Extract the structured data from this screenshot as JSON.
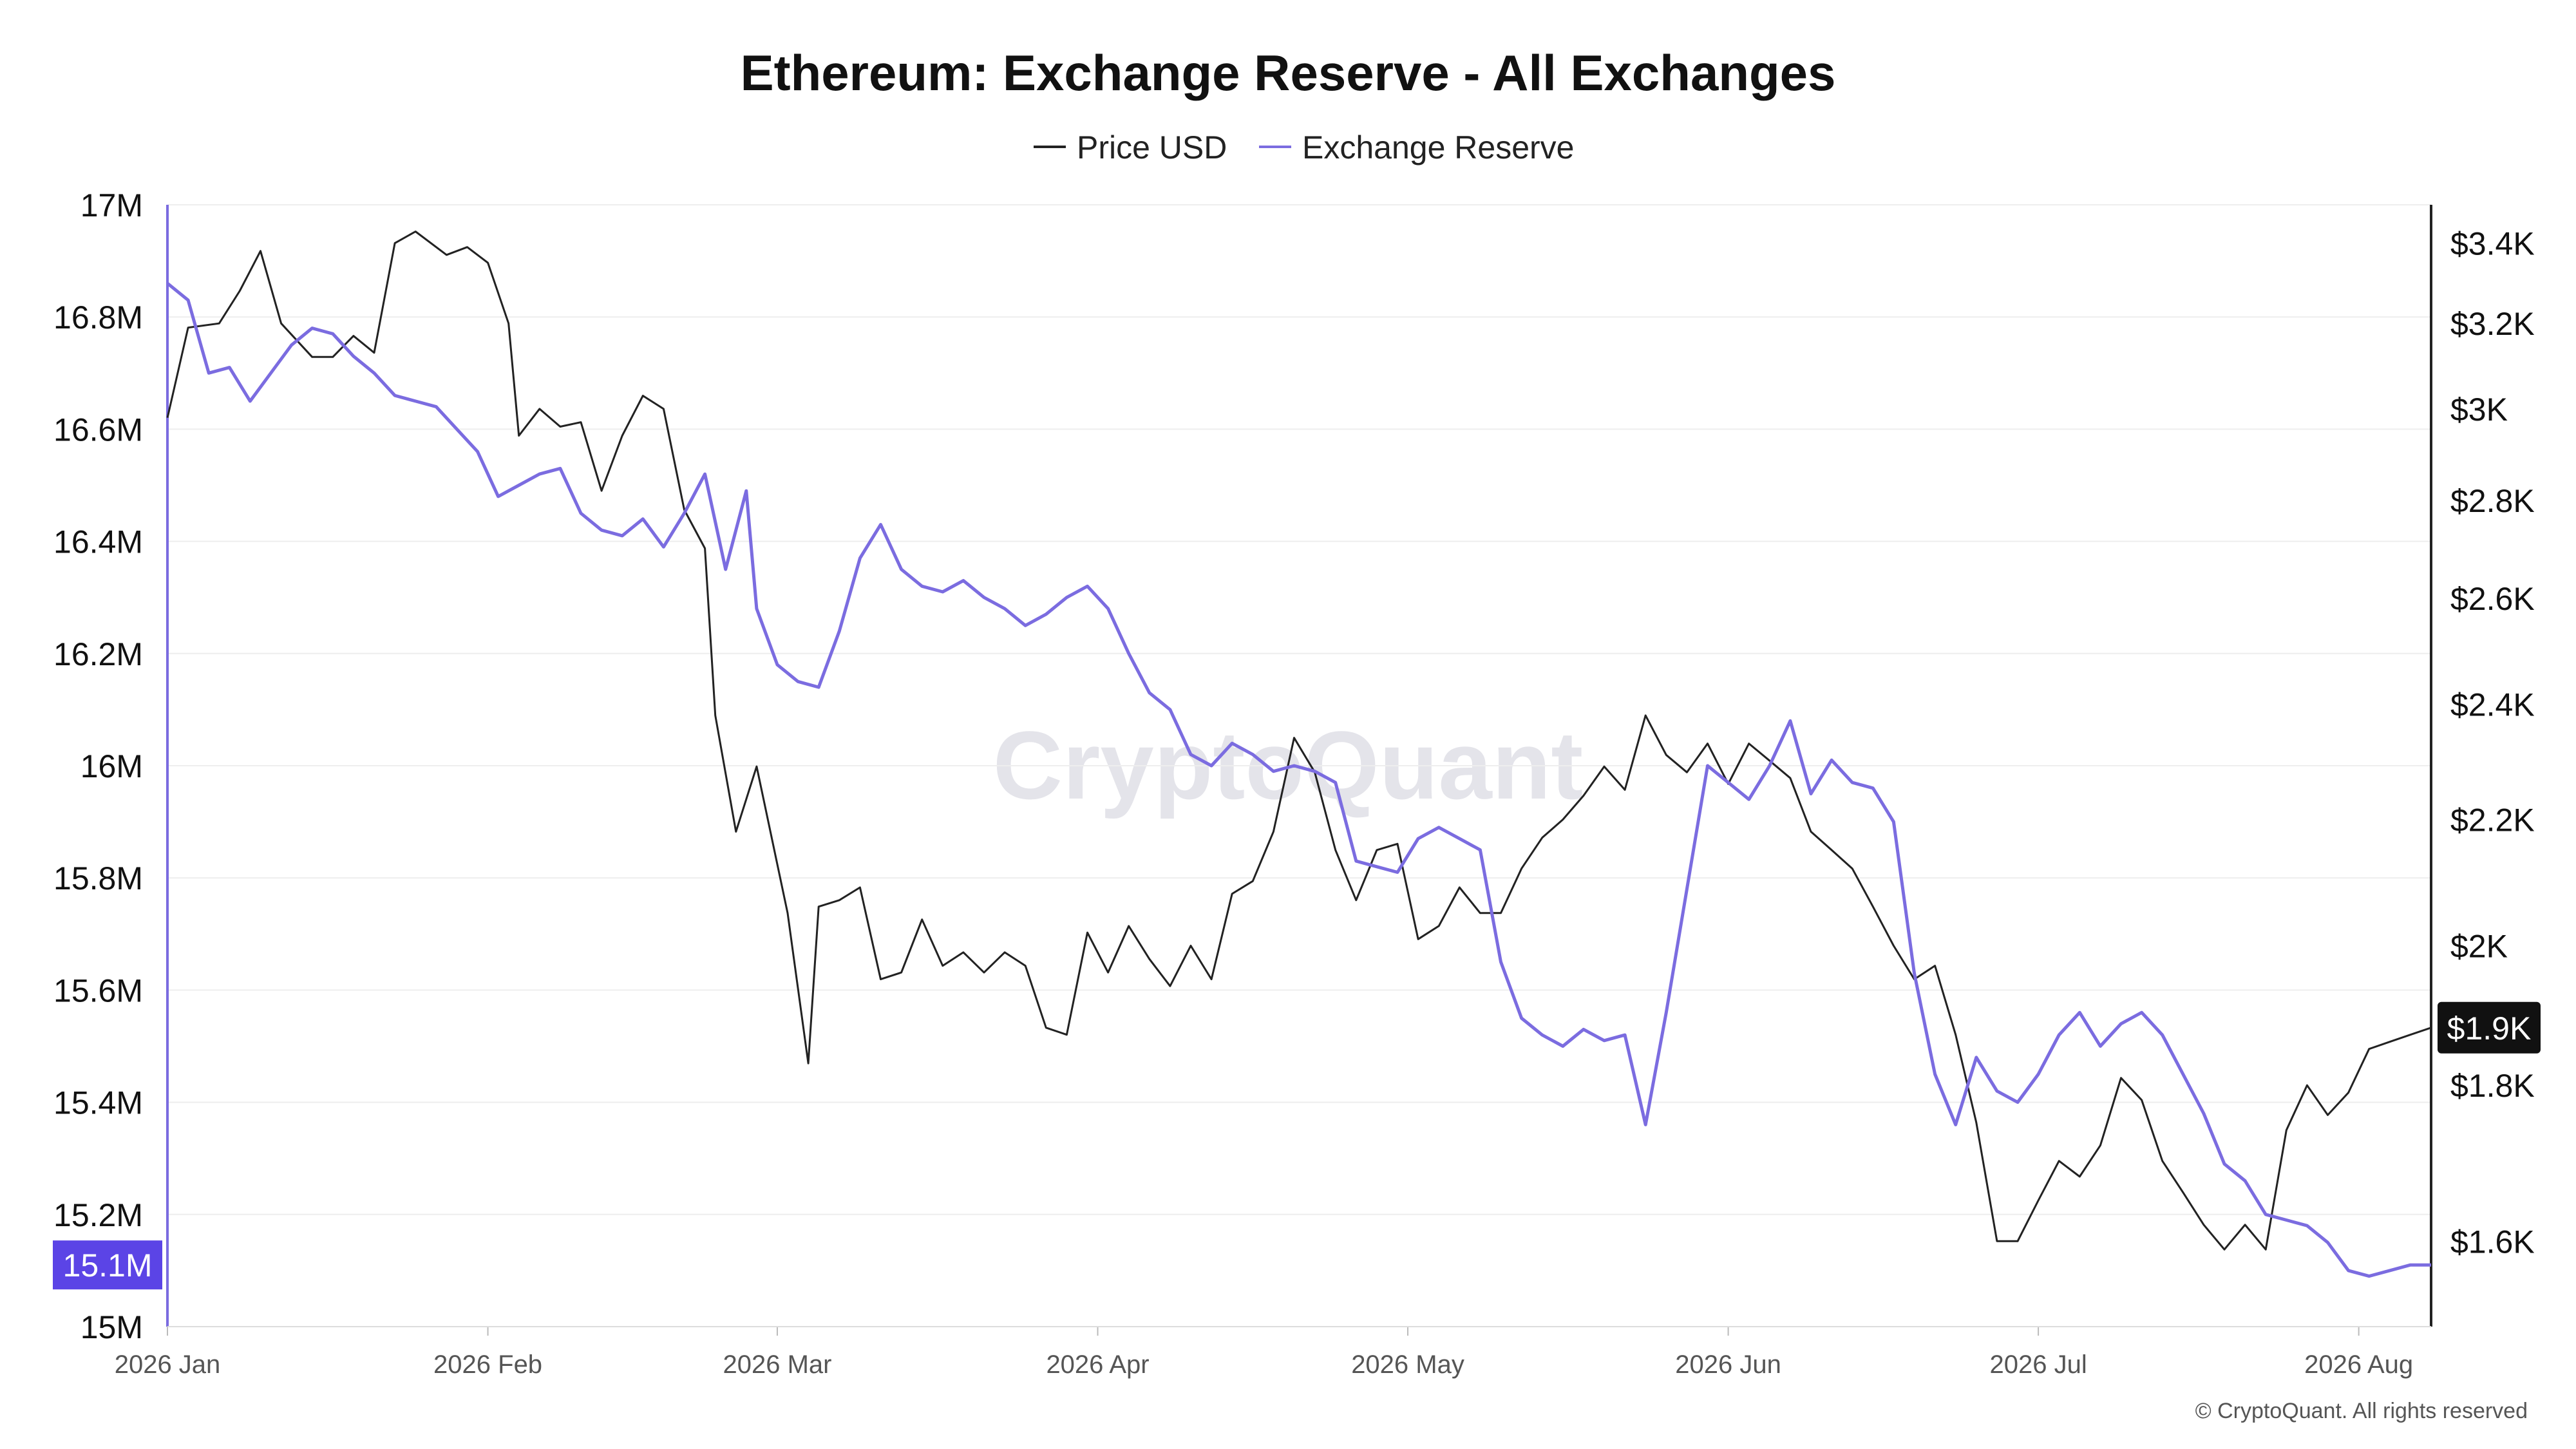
{
  "colors": {
    "price": "#222222",
    "reserve": "#7b6ce0",
    "reserve_badge": "#5b44e6",
    "price_badge": "#111111",
    "grid": "#eeeeee"
  },
  "watermark": "CryptoQuant",
  "copyright": "© CryptoQuant. All rights reserved",
  "chart_data": {
    "type": "line",
    "title": "Ethereum: Exchange Reserve - All Exchanges",
    "legend": {
      "placement": "top-center"
    },
    "grid": true,
    "x_ticks": [
      {
        "date": "2026-01-01",
        "label": "2026 Jan"
      },
      {
        "date": "2026-02-01",
        "label": "2026 Feb"
      },
      {
        "date": "2026-03-01",
        "label": "2026 Mar"
      },
      {
        "date": "2026-04-01",
        "label": "2026 Apr"
      },
      {
        "date": "2026-05-01",
        "label": "2026 May"
      },
      {
        "date": "2026-06-01",
        "label": "2026 Jun"
      },
      {
        "date": "2026-07-01",
        "label": "2026 Jul"
      },
      {
        "date": "2026-08-01",
        "label": "2026 Aug"
      }
    ],
    "xlim": [
      "2026-01-01",
      "2026-08-08"
    ],
    "y_left": {
      "ylim": [
        15000000,
        17000000
      ],
      "ticks": [
        {
          "value": 15000000,
          "label": "15M"
        },
        {
          "value": 15200000,
          "label": "15.2M"
        },
        {
          "value": 15400000,
          "label": "15.4M"
        },
        {
          "value": 15600000,
          "label": "15.6M"
        },
        {
          "value": 15800000,
          "label": "15.8M"
        },
        {
          "value": 16000000,
          "label": "16M"
        },
        {
          "value": 16200000,
          "label": "16.2M"
        },
        {
          "value": 16400000,
          "label": "16.4M"
        },
        {
          "value": 16600000,
          "label": "16.6M"
        },
        {
          "value": 16800000,
          "label": "16.8M"
        },
        {
          "value": 17000000,
          "label": "17M"
        }
      ],
      "current_value_label": "15.1M"
    },
    "y_right": {
      "scale": "log",
      "ylim": [
        1500,
        3500
      ],
      "ticks": [
        {
          "value": 1600,
          "label": "$1.6K"
        },
        {
          "value": 1800,
          "label": "$1.8K"
        },
        {
          "value": 2000,
          "label": "$2K"
        },
        {
          "value": 2200,
          "label": "$2.2K"
        },
        {
          "value": 2400,
          "label": "$2.4K"
        },
        {
          "value": 2600,
          "label": "$2.6K"
        },
        {
          "value": 2800,
          "label": "$2.8K"
        },
        {
          "value": 3000,
          "label": "$3K"
        },
        {
          "value": 3200,
          "label": "$3.2K"
        },
        {
          "value": 3400,
          "label": "$3.4K"
        }
      ],
      "current_value_label": "$1.9K"
    },
    "series": [
      {
        "name": "Price USD",
        "axis": "right",
        "points": [
          [
            "2026-01-01",
            2980
          ],
          [
            "2026-01-03",
            3190
          ],
          [
            "2026-01-06",
            3200
          ],
          [
            "2026-01-08",
            3280
          ],
          [
            "2026-01-10",
            3380
          ],
          [
            "2026-01-12",
            3200
          ],
          [
            "2026-01-15",
            3120
          ],
          [
            "2026-01-17",
            3120
          ],
          [
            "2026-01-19",
            3170
          ],
          [
            "2026-01-21",
            3130
          ],
          [
            "2026-01-23",
            3400
          ],
          [
            "2026-01-25",
            3430
          ],
          [
            "2026-01-28",
            3370
          ],
          [
            "2026-01-30",
            3390
          ],
          [
            "2026-02-01",
            3350
          ],
          [
            "2026-02-03",
            3200
          ],
          [
            "2026-02-04",
            2940
          ],
          [
            "2026-02-06",
            3000
          ],
          [
            "2026-02-08",
            2960
          ],
          [
            "2026-02-10",
            2970
          ],
          [
            "2026-02-12",
            2820
          ],
          [
            "2026-02-14",
            2940
          ],
          [
            "2026-02-16",
            3030
          ],
          [
            "2026-02-18",
            3000
          ],
          [
            "2026-02-20",
            2780
          ],
          [
            "2026-02-22",
            2700
          ],
          [
            "2026-02-23",
            2380
          ],
          [
            "2026-02-25",
            2180
          ],
          [
            "2026-02-27",
            2290
          ],
          [
            "2026-03-02",
            2050
          ],
          [
            "2026-03-04",
            1830
          ],
          [
            "2026-03-05",
            2060
          ],
          [
            "2026-03-07",
            2070
          ],
          [
            "2026-03-09",
            2090
          ],
          [
            "2026-03-11",
            1950
          ],
          [
            "2026-03-13",
            1960
          ],
          [
            "2026-03-15",
            2040
          ],
          [
            "2026-03-17",
            1970
          ],
          [
            "2026-03-19",
            1990
          ],
          [
            "2026-03-21",
            1960
          ],
          [
            "2026-03-23",
            1990
          ],
          [
            "2026-03-25",
            1970
          ],
          [
            "2026-03-27",
            1880
          ],
          [
            "2026-03-29",
            1870
          ],
          [
            "2026-03-31",
            2020
          ],
          [
            "2026-04-02",
            1960
          ],
          [
            "2026-04-04",
            2030
          ],
          [
            "2026-04-06",
            1980
          ],
          [
            "2026-04-08",
            1940
          ],
          [
            "2026-04-10",
            2000
          ],
          [
            "2026-04-12",
            1950
          ],
          [
            "2026-04-14",
            2080
          ],
          [
            "2026-04-16",
            2100
          ],
          [
            "2026-04-18",
            2180
          ],
          [
            "2026-04-20",
            2340
          ],
          [
            "2026-04-22",
            2280
          ],
          [
            "2026-04-24",
            2150
          ],
          [
            "2026-04-26",
            2070
          ],
          [
            "2026-04-28",
            2150
          ],
          [
            "2026-04-30",
            2160
          ],
          [
            "2026-05-02",
            2010
          ],
          [
            "2026-05-04",
            2030
          ],
          [
            "2026-05-06",
            2090
          ],
          [
            "2026-05-08",
            2050
          ],
          [
            "2026-05-10",
            2050
          ],
          [
            "2026-05-12",
            2120
          ],
          [
            "2026-05-14",
            2170
          ],
          [
            "2026-05-16",
            2200
          ],
          [
            "2026-05-18",
            2240
          ],
          [
            "2026-05-20",
            2290
          ],
          [
            "2026-05-22",
            2250
          ],
          [
            "2026-05-24",
            2380
          ],
          [
            "2026-05-26",
            2310
          ],
          [
            "2026-05-28",
            2280
          ],
          [
            "2026-05-30",
            2330
          ],
          [
            "2026-06-01",
            2260
          ],
          [
            "2026-06-03",
            2330
          ],
          [
            "2026-06-05",
            2300
          ],
          [
            "2026-06-07",
            2270
          ],
          [
            "2026-06-09",
            2180
          ],
          [
            "2026-06-11",
            2150
          ],
          [
            "2026-06-13",
            2120
          ],
          [
            "2026-06-15",
            2060
          ],
          [
            "2026-06-17",
            2000
          ],
          [
            "2026-06-19",
            1950
          ],
          [
            "2026-06-21",
            1970
          ],
          [
            "2026-06-23",
            1870
          ],
          [
            "2026-06-25",
            1750
          ],
          [
            "2026-06-27",
            1600
          ],
          [
            "2026-06-29",
            1600
          ],
          [
            "2026-07-01",
            1650
          ],
          [
            "2026-07-03",
            1700
          ],
          [
            "2026-07-05",
            1680
          ],
          [
            "2026-07-07",
            1720
          ],
          [
            "2026-07-09",
            1810
          ],
          [
            "2026-07-11",
            1780
          ],
          [
            "2026-07-13",
            1700
          ],
          [
            "2026-07-15",
            1660
          ],
          [
            "2026-07-17",
            1620
          ],
          [
            "2026-07-19",
            1590
          ],
          [
            "2026-07-21",
            1620
          ],
          [
            "2026-07-23",
            1590
          ],
          [
            "2026-07-25",
            1740
          ],
          [
            "2026-07-27",
            1800
          ],
          [
            "2026-07-29",
            1760
          ],
          [
            "2026-07-31",
            1790
          ],
          [
            "2026-08-02",
            1850
          ],
          [
            "2026-08-04",
            1860
          ],
          [
            "2026-08-06",
            1870
          ],
          [
            "2026-08-08",
            1880
          ]
        ]
      },
      {
        "name": "Exchange Reserve",
        "axis": "left",
        "points": [
          [
            "2026-01-01",
            16860000
          ],
          [
            "2026-01-03",
            16830000
          ],
          [
            "2026-01-05",
            16700000
          ],
          [
            "2026-01-07",
            16710000
          ],
          [
            "2026-01-09",
            16650000
          ],
          [
            "2026-01-11",
            16700000
          ],
          [
            "2026-01-13",
            16750000
          ],
          [
            "2026-01-15",
            16780000
          ],
          [
            "2026-01-17",
            16770000
          ],
          [
            "2026-01-19",
            16730000
          ],
          [
            "2026-01-21",
            16700000
          ],
          [
            "2026-01-23",
            16660000
          ],
          [
            "2026-01-25",
            16650000
          ],
          [
            "2026-01-27",
            16640000
          ],
          [
            "2026-01-29",
            16600000
          ],
          [
            "2026-01-31",
            16560000
          ],
          [
            "2026-02-02",
            16480000
          ],
          [
            "2026-02-04",
            16500000
          ],
          [
            "2026-02-06",
            16520000
          ],
          [
            "2026-02-08",
            16530000
          ],
          [
            "2026-02-10",
            16450000
          ],
          [
            "2026-02-12",
            16420000
          ],
          [
            "2026-02-14",
            16410000
          ],
          [
            "2026-02-16",
            16440000
          ],
          [
            "2026-02-18",
            16390000
          ],
          [
            "2026-02-20",
            16450000
          ],
          [
            "2026-02-22",
            16520000
          ],
          [
            "2026-02-24",
            16350000
          ],
          [
            "2026-02-26",
            16490000
          ],
          [
            "2026-02-27",
            16280000
          ],
          [
            "2026-03-01",
            16180000
          ],
          [
            "2026-03-03",
            16150000
          ],
          [
            "2026-03-05",
            16140000
          ],
          [
            "2026-03-07",
            16240000
          ],
          [
            "2026-03-09",
            16370000
          ],
          [
            "2026-03-11",
            16430000
          ],
          [
            "2026-03-13",
            16350000
          ],
          [
            "2026-03-15",
            16320000
          ],
          [
            "2026-03-17",
            16310000
          ],
          [
            "2026-03-19",
            16330000
          ],
          [
            "2026-03-21",
            16300000
          ],
          [
            "2026-03-23",
            16280000
          ],
          [
            "2026-03-25",
            16250000
          ],
          [
            "2026-03-27",
            16270000
          ],
          [
            "2026-03-29",
            16300000
          ],
          [
            "2026-03-31",
            16320000
          ],
          [
            "2026-04-02",
            16280000
          ],
          [
            "2026-04-04",
            16200000
          ],
          [
            "2026-04-06",
            16130000
          ],
          [
            "2026-04-08",
            16100000
          ],
          [
            "2026-04-10",
            16020000
          ],
          [
            "2026-04-12",
            16000000
          ],
          [
            "2026-04-14",
            16040000
          ],
          [
            "2026-04-16",
            16020000
          ],
          [
            "2026-04-18",
            15990000
          ],
          [
            "2026-04-20",
            16000000
          ],
          [
            "2026-04-22",
            15990000
          ],
          [
            "2026-04-24",
            15970000
          ],
          [
            "2026-04-26",
            15830000
          ],
          [
            "2026-04-28",
            15820000
          ],
          [
            "2026-04-30",
            15810000
          ],
          [
            "2026-05-02",
            15870000
          ],
          [
            "2026-05-04",
            15890000
          ],
          [
            "2026-05-06",
            15870000
          ],
          [
            "2026-05-08",
            15850000
          ],
          [
            "2026-05-10",
            15650000
          ],
          [
            "2026-05-12",
            15550000
          ],
          [
            "2026-05-14",
            15520000
          ],
          [
            "2026-05-16",
            15500000
          ],
          [
            "2026-05-18",
            15530000
          ],
          [
            "2026-05-20",
            15510000
          ],
          [
            "2026-05-22",
            15520000
          ],
          [
            "2026-05-24",
            15360000
          ],
          [
            "2026-05-26",
            15560000
          ],
          [
            "2026-05-28",
            15780000
          ],
          [
            "2026-05-30",
            16000000
          ],
          [
            "2026-06-01",
            15970000
          ],
          [
            "2026-06-03",
            15940000
          ],
          [
            "2026-06-05",
            16000000
          ],
          [
            "2026-06-07",
            16080000
          ],
          [
            "2026-06-09",
            15950000
          ],
          [
            "2026-06-11",
            16010000
          ],
          [
            "2026-06-13",
            15970000
          ],
          [
            "2026-06-15",
            15960000
          ],
          [
            "2026-06-17",
            15900000
          ],
          [
            "2026-06-19",
            15630000
          ],
          [
            "2026-06-21",
            15450000
          ],
          [
            "2026-06-23",
            15360000
          ],
          [
            "2026-06-25",
            15480000
          ],
          [
            "2026-06-27",
            15420000
          ],
          [
            "2026-06-29",
            15400000
          ],
          [
            "2026-07-01",
            15450000
          ],
          [
            "2026-07-03",
            15520000
          ],
          [
            "2026-07-05",
            15560000
          ],
          [
            "2026-07-07",
            15500000
          ],
          [
            "2026-07-09",
            15540000
          ],
          [
            "2026-07-11",
            15560000
          ],
          [
            "2026-07-13",
            15520000
          ],
          [
            "2026-07-15",
            15450000
          ],
          [
            "2026-07-17",
            15380000
          ],
          [
            "2026-07-19",
            15290000
          ],
          [
            "2026-07-21",
            15260000
          ],
          [
            "2026-07-23",
            15200000
          ],
          [
            "2026-07-25",
            15190000
          ],
          [
            "2026-07-27",
            15180000
          ],
          [
            "2026-07-29",
            15150000
          ],
          [
            "2026-07-31",
            15100000
          ],
          [
            "2026-08-02",
            15090000
          ],
          [
            "2026-08-04",
            15100000
          ],
          [
            "2026-08-06",
            15110000
          ],
          [
            "2026-08-08",
            15110000
          ]
        ]
      }
    ]
  }
}
